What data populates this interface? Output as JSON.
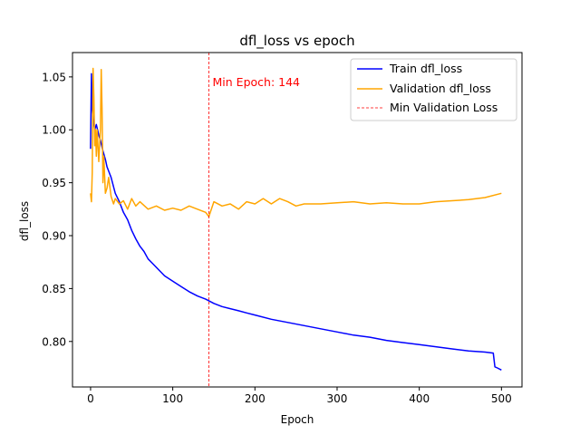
{
  "chart_data": {
    "type": "line",
    "title": "dfl_loss vs epoch",
    "xlabel": "Epoch",
    "ylabel": "dfl_loss",
    "xlim": [
      -22,
      525
    ],
    "ylim": [
      0.757,
      1.073
    ],
    "xticks": [
      0,
      100,
      200,
      300,
      400,
      500
    ],
    "xtick_labels": [
      "0",
      "100",
      "200",
      "300",
      "400",
      "500"
    ],
    "yticks": [
      0.8,
      0.85,
      0.9,
      0.95,
      1.0,
      1.05
    ],
    "ytick_labels": [
      "0.80",
      "0.85",
      "0.90",
      "0.95",
      "1.00",
      "1.05"
    ],
    "grid": false,
    "legend_position": "top-right",
    "min_epoch": 144,
    "annotation": "Min Epoch: 144",
    "series": [
      {
        "name": "Train dfl_loss",
        "color": "#0000ff",
        "style": "solid",
        "x": [
          0,
          1,
          2,
          3,
          5,
          7,
          10,
          12,
          15,
          18,
          20,
          25,
          30,
          35,
          40,
          45,
          50,
          55,
          60,
          65,
          70,
          75,
          80,
          90,
          100,
          110,
          120,
          130,
          140,
          150,
          160,
          170,
          180,
          190,
          200,
          220,
          240,
          260,
          280,
          300,
          320,
          340,
          360,
          380,
          400,
          420,
          440,
          460,
          480,
          490,
          492,
          495,
          500
        ],
        "y": [
          0.982,
          1.053,
          1.02,
          1.01,
          1.0,
          1.005,
          0.995,
          0.99,
          0.98,
          0.972,
          0.965,
          0.955,
          0.94,
          0.932,
          0.922,
          0.915,
          0.905,
          0.897,
          0.89,
          0.885,
          0.878,
          0.874,
          0.87,
          0.862,
          0.857,
          0.852,
          0.847,
          0.843,
          0.84,
          0.836,
          0.833,
          0.831,
          0.829,
          0.827,
          0.825,
          0.821,
          0.818,
          0.815,
          0.812,
          0.809,
          0.806,
          0.804,
          0.801,
          0.799,
          0.797,
          0.795,
          0.793,
          0.791,
          0.79,
          0.789,
          0.776,
          0.775,
          0.773
        ]
      },
      {
        "name": "Validation dfl_loss",
        "color": "#ffa500",
        "style": "solid",
        "x": [
          0,
          1,
          2,
          3,
          4,
          5,
          6,
          7,
          8,
          10,
          12,
          13,
          14,
          15,
          16,
          18,
          20,
          22,
          25,
          28,
          30,
          35,
          40,
          45,
          50,
          55,
          60,
          70,
          80,
          90,
          100,
          110,
          120,
          130,
          140,
          144,
          150,
          160,
          170,
          180,
          190,
          200,
          210,
          220,
          230,
          240,
          250,
          260,
          280,
          300,
          320,
          340,
          360,
          380,
          400,
          420,
          440,
          460,
          480,
          500
        ],
        "y": [
          0.94,
          0.932,
          0.96,
          1.058,
          1.03,
          0.985,
          1.0,
          0.975,
          1.0,
          0.97,
          1.0,
          1.057,
          1.02,
          0.95,
          0.975,
          0.94,
          0.945,
          0.955,
          0.937,
          0.93,
          0.935,
          0.93,
          0.933,
          0.925,
          0.935,
          0.928,
          0.932,
          0.925,
          0.928,
          0.924,
          0.926,
          0.924,
          0.928,
          0.925,
          0.922,
          0.918,
          0.932,
          0.928,
          0.93,
          0.925,
          0.932,
          0.93,
          0.935,
          0.93,
          0.935,
          0.932,
          0.928,
          0.93,
          0.93,
          0.931,
          0.932,
          0.93,
          0.931,
          0.93,
          0.93,
          0.932,
          0.933,
          0.934,
          0.936,
          0.94
        ]
      }
    ],
    "marker_line": {
      "name": "Min Validation Loss",
      "x": 144,
      "color": "#ff0000",
      "style": "dashed"
    }
  }
}
